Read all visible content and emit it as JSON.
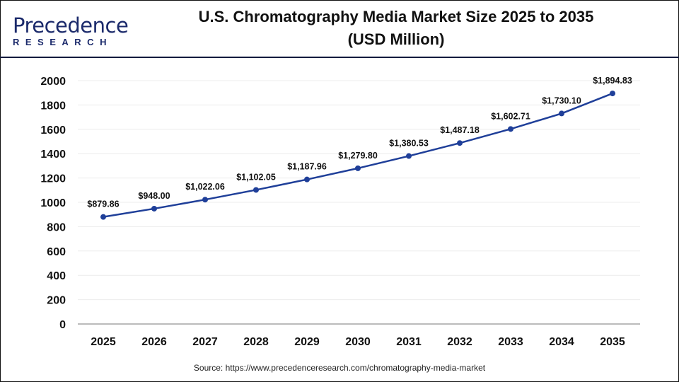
{
  "logo": {
    "text_main": "Precedence",
    "text_sub": "RESEARCH"
  },
  "title_line1": "U.S. Chromatography Media Market Size 2025 to 2035",
  "title_line2": "(USD Million)",
  "source": "Source: https://www.precedenceresearch.com/chromatography-media-market",
  "chart_data": {
    "type": "line",
    "title": "U.S. Chromatography Media Market Size 2025 to 2035 (USD Million)",
    "categories": [
      "2025",
      "2026",
      "2027",
      "2028",
      "2029",
      "2030",
      "2031",
      "2032",
      "2033",
      "2034",
      "2035"
    ],
    "values": [
      879.86,
      948.0,
      1022.06,
      1102.05,
      1187.96,
      1279.8,
      1380.53,
      1487.18,
      1602.71,
      1730.1,
      1894.83
    ],
    "data_labels": [
      "$879.86",
      "$948.00",
      "$1,022.06",
      "$1,102.05",
      "$1,187.96",
      "$1,279.80",
      "$1,380.53",
      "$1,487.18",
      "$1,602.71",
      "$1,730.10",
      "$1,894.83"
    ],
    "ylim": [
      0,
      2000
    ],
    "yticks": [
      "0",
      "200",
      "400",
      "600",
      "800",
      "1000",
      "1200",
      "1400",
      "1600",
      "1800",
      "2000"
    ],
    "grid": true,
    "legend": "none",
    "color": "#1f3f99"
  }
}
